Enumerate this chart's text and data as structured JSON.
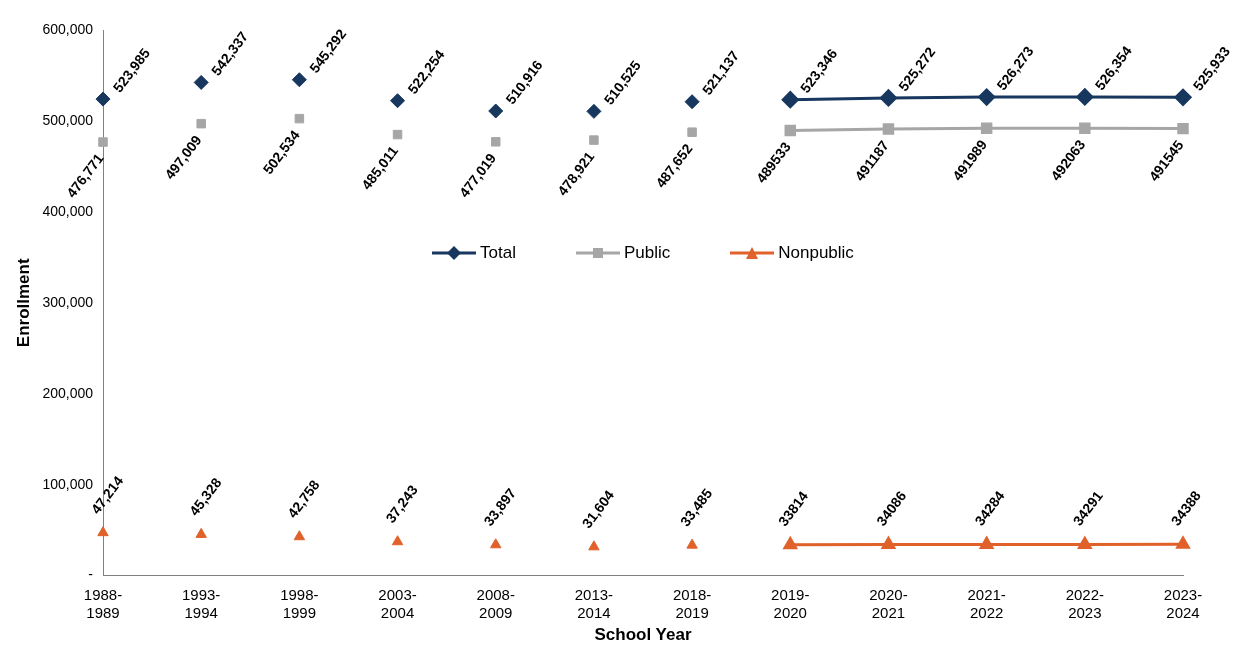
{
  "chart_data": {
    "type": "line",
    "xlabel": "School Year",
    "ylabel": "Enrollment",
    "categories": [
      "1988-1989",
      "1993-1994",
      "1998-1999",
      "2003-2004",
      "2008-2009",
      "2013-2014",
      "2018-2019",
      "2019-2020",
      "2020-2021",
      "2021-2022",
      "2022-2023",
      "2023-2024"
    ],
    "ylim": [
      0,
      600000
    ],
    "yticks": [
      {
        "value": 0,
        "label": "-"
      },
      {
        "value": 100000,
        "label": "100,000"
      },
      {
        "value": 200000,
        "label": "200,000"
      },
      {
        "value": 300000,
        "label": "300,000"
      },
      {
        "value": 400000,
        "label": "400,000"
      },
      {
        "value": 500000,
        "label": "500,000"
      },
      {
        "value": 600000,
        "label": "600,000"
      }
    ],
    "grid": false,
    "legend": "center",
    "series": [
      {
        "type": "scatter",
        "color": "#17375e",
        "marker": "diamond",
        "values": [
          523985,
          542337,
          545292,
          522254,
          510916,
          510525,
          521137,
          null,
          null,
          null,
          null,
          null
        ],
        "value_labels": [
          "523,985",
          "542,337",
          "545,292",
          "522,254",
          "510,916",
          "510,525",
          "521,137",
          null,
          null,
          null,
          null,
          null
        ]
      },
      {
        "type": "scatter",
        "color": "#a6a6a6",
        "marker": "square",
        "values": [
          476771,
          497009,
          502534,
          485011,
          477019,
          478921,
          487652,
          null,
          null,
          null,
          null,
          null
        ],
        "value_labels": [
          "476,771",
          "497,009",
          "502,534",
          "485,011",
          "477,019",
          "478,921",
          "487,652",
          null,
          null,
          null,
          null,
          null
        ]
      },
      {
        "type": "scatter",
        "color": "#e0622a",
        "marker": "triangle",
        "values": [
          47214,
          45328,
          42758,
          37243,
          33897,
          31604,
          33485,
          null,
          null,
          null,
          null,
          null
        ],
        "value_labels": [
          "47,214",
          "45,328",
          "42,758",
          "37,243",
          "33,897",
          "31,604",
          "33,485",
          null,
          null,
          null,
          null,
          null
        ]
      },
      {
        "name": "Total",
        "color": "#17375e",
        "marker": "diamond",
        "values": [
          null,
          null,
          null,
          null,
          null,
          null,
          null,
          523346,
          525272,
          526273,
          526354,
          525933
        ],
        "value_labels": [
          null,
          null,
          null,
          null,
          null,
          null,
          null,
          "523,346",
          "525,272",
          "526,273",
          "526,354",
          "525,933"
        ]
      },
      {
        "name": "Public",
        "color": "#a6a6a6",
        "marker": "square",
        "values": [
          null,
          null,
          null,
          null,
          null,
          null,
          null,
          489533,
          491187,
          491989,
          492063,
          491545
        ],
        "value_labels": [
          null,
          null,
          null,
          null,
          null,
          null,
          null,
          "489533",
          "491187",
          "491989",
          "492063",
          "491545"
        ]
      },
      {
        "name": "Nonpublic",
        "color": "#e0622a",
        "marker": "triangle",
        "values": [
          null,
          null,
          null,
          null,
          null,
          null,
          null,
          33814,
          34086,
          34284,
          34291,
          34388
        ],
        "value_labels": [
          null,
          null,
          null,
          null,
          null,
          null,
          null,
          "33814",
          "34086",
          "34284",
          "34291",
          "34388"
        ]
      }
    ]
  }
}
